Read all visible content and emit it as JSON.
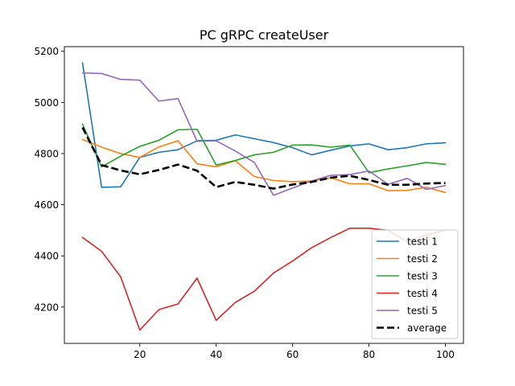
{
  "chart_data": {
    "type": "line",
    "title": "PC gRPC createUser",
    "xlabel": "",
    "ylabel": "",
    "xlim": [
      0.25,
      104.75
    ],
    "ylim": [
      4058,
      5218
    ],
    "xticks": [
      20,
      40,
      60,
      80,
      100
    ],
    "yticks": [
      4200,
      4400,
      4600,
      4800,
      5000,
      5200
    ],
    "grid": false,
    "legend_position": "lower right",
    "x": [
      5,
      10,
      15,
      20,
      25,
      30,
      35,
      40,
      45,
      50,
      55,
      60,
      65,
      70,
      75,
      80,
      85,
      90,
      95,
      100
    ],
    "series": [
      {
        "name": "testi 1",
        "color": "#1f77b4",
        "style": "solid",
        "values": [
          5155,
          4668,
          4670,
          4785,
          4805,
          4815,
          4850,
          4852,
          4873,
          4858,
          4843,
          4823,
          4795,
          4813,
          4830,
          4838,
          4815,
          4823,
          4838,
          4842
        ]
      },
      {
        "name": "testi 2",
        "color": "#ff7f0e",
        "style": "solid",
        "values": [
          4855,
          4825,
          4800,
          4785,
          4826,
          4850,
          4760,
          4748,
          4772,
          4710,
          4695,
          4690,
          4693,
          4705,
          4682,
          4682,
          4655,
          4656,
          4668,
          4648
        ]
      },
      {
        "name": "testi 3",
        "color": "#2ca02c",
        "style": "solid",
        "values": [
          4915,
          4748,
          4790,
          4828,
          4852,
          4893,
          4895,
          4755,
          4773,
          4795,
          4805,
          4833,
          4834,
          4825,
          4833,
          4725,
          4740,
          4752,
          4765,
          4758
        ]
      },
      {
        "name": "testi 4",
        "color": "#d62728",
        "style": "solid",
        "values": [
          4472,
          4418,
          4318,
          4110,
          4190,
          4212,
          4313,
          4148,
          4218,
          4262,
          4333,
          4380,
          4432,
          4472,
          4508,
          4508,
          4500,
          4455,
          4483,
          4500
        ]
      },
      {
        "name": "testi 5",
        "color": "#9467bd",
        "style": "solid",
        "values": [
          5115,
          5113,
          5090,
          5087,
          5005,
          5015,
          4848,
          4850,
          4810,
          4765,
          4637,
          4665,
          4693,
          4715,
          4718,
          4732,
          4680,
          4703,
          4660,
          4675
        ]
      },
      {
        "name": "average",
        "color": "#000000",
        "style": "dashed",
        "values": [
          4902,
          4755,
          4734,
          4719,
          4736,
          4757,
          4733,
          4669,
          4689,
          4678,
          4663,
          4679,
          4689,
          4706,
          4713,
          4697,
          4678,
          4678,
          4683,
          4685
        ]
      }
    ]
  }
}
